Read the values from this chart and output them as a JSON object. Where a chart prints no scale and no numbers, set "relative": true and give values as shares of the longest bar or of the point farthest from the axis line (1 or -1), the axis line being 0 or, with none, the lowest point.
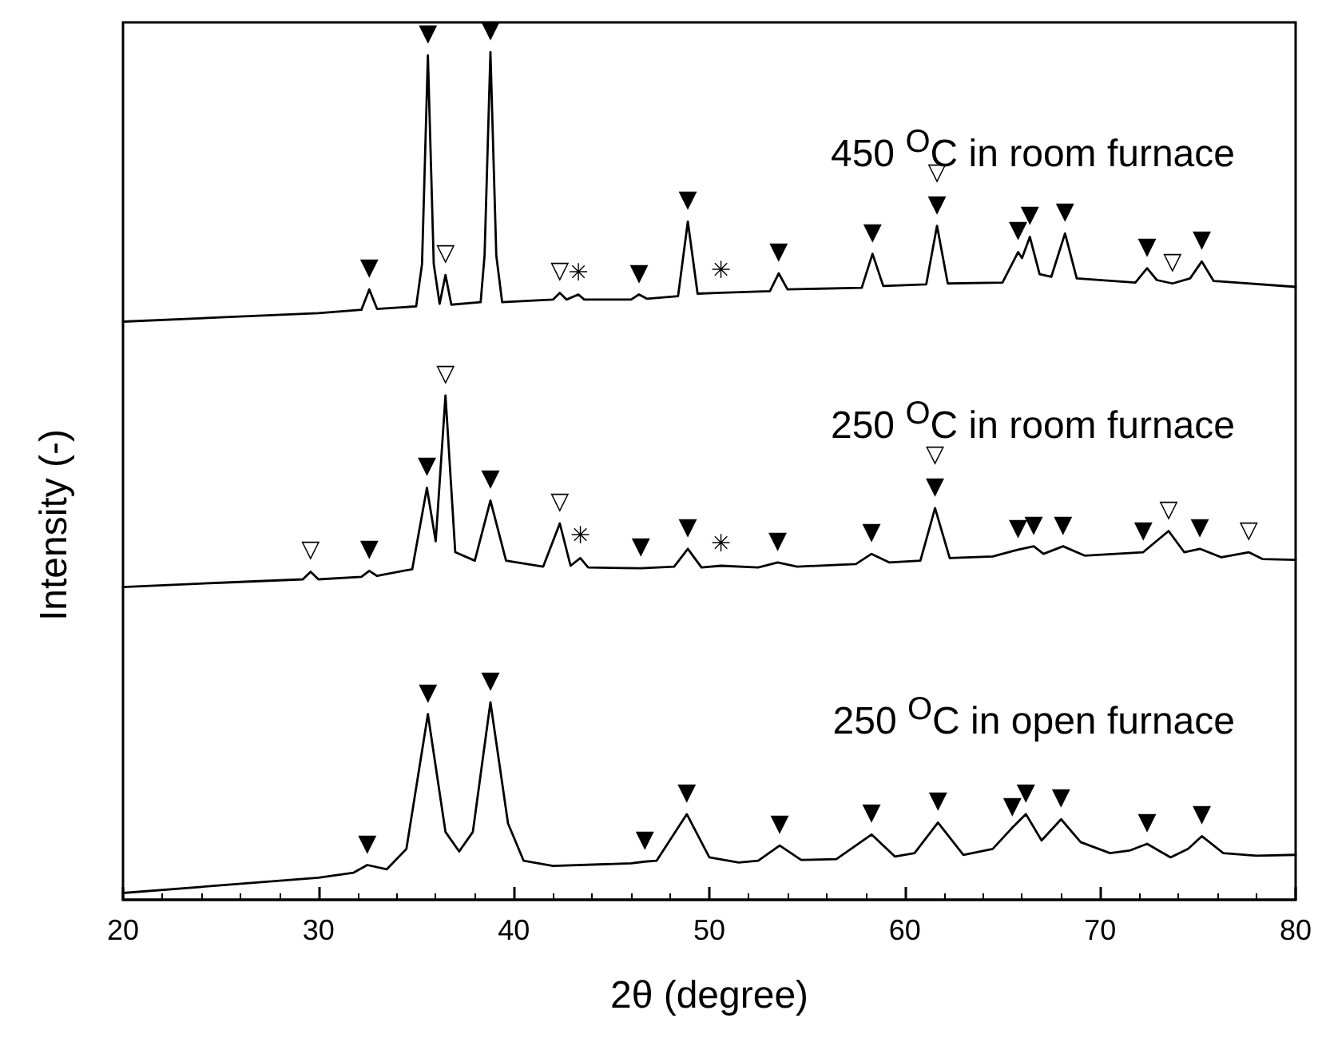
{
  "chart_data": {
    "type": "line",
    "relative": true,
    "xlabel": "2θ (degree)",
    "ylabel": "Intensity (-)",
    "xlim": [
      20,
      80
    ],
    "xticks": [
      20,
      30,
      40,
      50,
      60,
      70,
      80
    ],
    "series": [
      {
        "name": "450 $^{O}$C in room furnace",
        "color": "#000000",
        "x": [
          20,
          25,
          30,
          32.2,
          32.6,
          33.0,
          35.0,
          35.3,
          35.6,
          35.9,
          36.2,
          36.5,
          36.8,
          38.3,
          38.5,
          38.8,
          39.1,
          39.4,
          42.0,
          42.35,
          42.7,
          43.3,
          43.6,
          46.0,
          46.4,
          46.8,
          48.4,
          48.9,
          49.4,
          50.6,
          53.1,
          53.55,
          54.0,
          57.8,
          58.35,
          58.9,
          61.1,
          61.65,
          62.2,
          65.0,
          65.8,
          66.0,
          66.4,
          66.9,
          67.5,
          68.2,
          68.8,
          71.8,
          72.4,
          72.9,
          73.7,
          74.6,
          75.2,
          75.8,
          80
        ],
        "values": [
          0.682,
          0.687,
          0.692,
          0.696,
          0.72,
          0.697,
          0.7,
          0.75,
          0.996,
          0.75,
          0.703,
          0.737,
          0.702,
          0.705,
          0.76,
          1.0,
          0.76,
          0.705,
          0.708,
          0.716,
          0.708,
          0.714,
          0.708,
          0.708,
          0.714,
          0.709,
          0.712,
          0.8,
          0.715,
          0.716,
          0.718,
          0.739,
          0.72,
          0.722,
          0.762,
          0.724,
          0.726,
          0.795,
          0.727,
          0.728,
          0.764,
          0.757,
          0.782,
          0.738,
          0.735,
          0.786,
          0.733,
          0.728,
          0.745,
          0.731,
          0.727,
          0.733,
          0.753,
          0.73,
          0.723
        ]
      },
      {
        "name": "250 $^{O}$C in room furnace",
        "color": "#000000",
        "x": [
          20,
          25,
          29.2,
          29.6,
          30.0,
          32.2,
          32.6,
          33.0,
          34.8,
          35.55,
          36.0,
          36.5,
          37.0,
          38.0,
          38.8,
          39.6,
          41.5,
          42.35,
          42.9,
          43.4,
          43.8,
          46.5,
          48.2,
          48.9,
          49.6,
          50.6,
          52.5,
          53.5,
          54.5,
          57.5,
          58.3,
          59.2,
          60.8,
          61.55,
          62.3,
          64.5,
          65.8,
          66.6,
          67.1,
          68.1,
          69.2,
          72.2,
          73.5,
          74.3,
          75.1,
          76.2,
          77.6,
          78.3,
          80
        ],
        "values": [
          0.369,
          0.374,
          0.378,
          0.387,
          0.378,
          0.381,
          0.388,
          0.382,
          0.39,
          0.486,
          0.423,
          0.595,
          0.41,
          0.4,
          0.471,
          0.4,
          0.393,
          0.444,
          0.394,
          0.403,
          0.392,
          0.391,
          0.393,
          0.414,
          0.392,
          0.394,
          0.392,
          0.398,
          0.393,
          0.396,
          0.408,
          0.398,
          0.4,
          0.462,
          0.403,
          0.405,
          0.413,
          0.417,
          0.408,
          0.417,
          0.406,
          0.41,
          0.435,
          0.41,
          0.414,
          0.404,
          0.41,
          0.402,
          0.401
        ]
      },
      {
        "name": "250 $^{O}$C in open furnace",
        "color": "#000000",
        "x": [
          20,
          25,
          30,
          31.8,
          32.5,
          33.5,
          34.5,
          35.6,
          36.5,
          37.2,
          37.9,
          38.8,
          39.7,
          40.5,
          42,
          46,
          46.7,
          47.3,
          48.85,
          50.0,
          51.5,
          52.5,
          53.6,
          54.7,
          56.5,
          58.3,
          59.5,
          60.5,
          61.7,
          63.0,
          64.5,
          65.5,
          66.2,
          67.0,
          68.0,
          69.0,
          70.5,
          71.5,
          72.4,
          73.6,
          74.5,
          75.2,
          76.3,
          78,
          80
        ],
        "values": [
          0.008,
          0.017,
          0.026,
          0.032,
          0.041,
          0.036,
          0.06,
          0.219,
          0.08,
          0.057,
          0.08,
          0.233,
          0.09,
          0.046,
          0.04,
          0.043,
          0.045,
          0.046,
          0.101,
          0.05,
          0.044,
          0.046,
          0.064,
          0.047,
          0.048,
          0.077,
          0.051,
          0.055,
          0.091,
          0.053,
          0.06,
          0.085,
          0.101,
          0.07,
          0.095,
          0.068,
          0.055,
          0.058,
          0.066,
          0.05,
          0.06,
          0.075,
          0.055,
          0.052,
          0.053
        ]
      }
    ],
    "annotations": [
      {
        "text": "▼",
        "x": 32.6,
        "y": 0.72
      },
      {
        "text": "▼",
        "x": 35.6,
        "y": 0.996
      },
      {
        "text": "▽",
        "x": 36.5,
        "y": 0.737
      },
      {
        "text": "▼",
        "x": 38.8,
        "y": 1.0
      },
      {
        "text": "▽",
        "x": 42.35,
        "y": 0.716
      },
      {
        "text": "✳",
        "x": 43.3,
        "y": 0.714
      },
      {
        "text": "▼",
        "x": 46.4,
        "y": 0.714
      },
      {
        "text": "▼",
        "x": 48.9,
        "y": 0.8
      },
      {
        "text": "✳",
        "x": 50.6,
        "y": 0.716
      },
      {
        "text": "▼",
        "x": 53.55,
        "y": 0.739
      },
      {
        "text": "▼",
        "x": 58.35,
        "y": 0.762
      },
      {
        "text": "▼",
        "x": 61.65,
        "y": 0.795
      },
      {
        "text": "▽",
        "x": 61.65,
        "y": 0.795
      },
      {
        "text": "▼",
        "x": 65.8,
        "y": 0.764
      },
      {
        "text": "▼",
        "x": 66.4,
        "y": 0.782
      },
      {
        "text": "▼",
        "x": 68.2,
        "y": 0.786
      },
      {
        "text": "▼",
        "x": 72.4,
        "y": 0.745
      },
      {
        "text": "▽",
        "x": 73.7,
        "y": 0.727
      },
      {
        "text": "▼",
        "x": 75.2,
        "y": 0.753
      },
      {
        "text": "▽",
        "x": 29.6,
        "y": 0.387
      },
      {
        "text": "▼",
        "x": 32.6,
        "y": 0.388
      },
      {
        "text": "▼",
        "x": 35.55,
        "y": 0.486
      },
      {
        "text": "▽",
        "x": 36.5,
        "y": 0.595
      },
      {
        "text": "▼",
        "x": 38.8,
        "y": 0.471
      },
      {
        "text": "▽",
        "x": 42.35,
        "y": 0.444
      },
      {
        "text": "✳",
        "x": 43.4,
        "y": 0.403
      },
      {
        "text": "▼",
        "x": 46.5,
        "y": 0.391
      },
      {
        "text": "▼",
        "x": 48.9,
        "y": 0.414
      },
      {
        "text": "✳",
        "x": 50.6,
        "y": 0.394
      },
      {
        "text": "▼",
        "x": 53.5,
        "y": 0.398
      },
      {
        "text": "▼",
        "x": 58.3,
        "y": 0.408
      },
      {
        "text": "▼",
        "x": 61.55,
        "y": 0.462
      },
      {
        "text": "▽",
        "x": 61.55,
        "y": 0.462
      },
      {
        "text": "▼",
        "x": 65.8,
        "y": 0.413
      },
      {
        "text": "▼",
        "x": 66.6,
        "y": 0.417
      },
      {
        "text": "▼",
        "x": 68.1,
        "y": 0.417
      },
      {
        "text": "▼",
        "x": 72.2,
        "y": 0.41
      },
      {
        "text": "▽",
        "x": 73.5,
        "y": 0.435
      },
      {
        "text": "▼",
        "x": 75.1,
        "y": 0.414
      },
      {
        "text": "▽",
        "x": 77.6,
        "y": 0.41
      },
      {
        "text": "▼",
        "x": 32.5,
        "y": 0.041
      },
      {
        "text": "▼",
        "x": 35.6,
        "y": 0.219
      },
      {
        "text": "▼",
        "x": 38.8,
        "y": 0.233
      },
      {
        "text": "▼",
        "x": 46.7,
        "y": 0.045
      },
      {
        "text": "▼",
        "x": 48.85,
        "y": 0.101
      },
      {
        "text": "▼",
        "x": 53.6,
        "y": 0.064
      },
      {
        "text": "▼",
        "x": 58.3,
        "y": 0.077
      },
      {
        "text": "▼",
        "x": 61.7,
        "y": 0.091
      },
      {
        "text": "▼",
        "x": 65.5,
        "y": 0.085
      },
      {
        "text": "▼",
        "x": 66.2,
        "y": 0.101
      },
      {
        "text": "▼",
        "x": 68.0,
        "y": 0.095
      },
      {
        "text": "▼",
        "x": 72.4,
        "y": 0.066
      },
      {
        "text": "▼",
        "x": 75.2,
        "y": 0.075
      }
    ]
  }
}
